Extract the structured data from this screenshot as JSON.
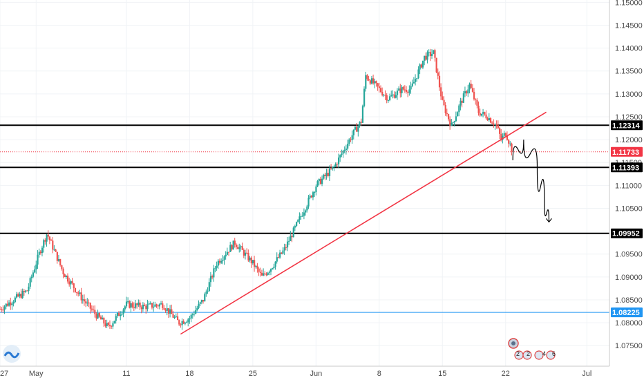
{
  "chart_data": {
    "type": "candlestick",
    "ylim": [
      1.0705,
      1.1505
    ],
    "x_range_days": [
      -4,
      63.5
    ],
    "y_ticks": [
      "1.07500",
      "1.08000",
      "1.08500",
      "1.09000",
      "1.09500",
      "1.10000",
      "1.10500",
      "1.11000",
      "1.11500",
      "1.12000",
      "1.12500",
      "1.13000",
      "1.13500",
      "1.14000",
      "1.14500",
      "1.15000"
    ],
    "x_ticks": [
      {
        "label": "27",
        "day": -4
      },
      {
        "label": "May",
        "day": 0
      },
      {
        "label": "11",
        "day": 10
      },
      {
        "label": "18",
        "day": 17
      },
      {
        "label": "25",
        "day": 24
      },
      {
        "label": "Jun",
        "day": 31
      },
      {
        "label": "8",
        "day": 38
      },
      {
        "label": "15",
        "day": 45
      },
      {
        "label": "22",
        "day": 52
      },
      {
        "label": "Jul",
        "day": 61
      }
    ],
    "anchors": [
      [
        -4,
        1.083
      ],
      [
        -1,
        1.087
      ],
      [
        0.4,
        1.0955
      ],
      [
        1.2,
        1.0995
      ],
      [
        3,
        1.091
      ],
      [
        5,
        1.0855
      ],
      [
        6.5,
        1.082
      ],
      [
        8,
        1.079
      ],
      [
        10,
        1.084
      ],
      [
        12,
        1.0835
      ],
      [
        14,
        1.084
      ],
      [
        15.8,
        1.08
      ],
      [
        17,
        1.081
      ],
      [
        18.5,
        1.085
      ],
      [
        20,
        1.093
      ],
      [
        22,
        1.0975
      ],
      [
        24,
        1.093
      ],
      [
        25,
        1.09
      ],
      [
        26,
        1.092
      ],
      [
        27.5,
        1.096
      ],
      [
        29,
        1.102
      ],
      [
        31,
        1.11
      ],
      [
        33,
        1.114
      ],
      [
        35,
        1.121
      ],
      [
        36,
        1.124
      ],
      [
        36.5,
        1.134
      ],
      [
        37.5,
        1.132
      ],
      [
        39,
        1.129
      ],
      [
        40.5,
        1.131
      ],
      [
        41.5,
        1.131
      ],
      [
        43,
        1.138
      ],
      [
        44,
        1.139
      ],
      [
        45,
        1.128
      ],
      [
        46,
        1.123
      ],
      [
        47,
        1.128
      ],
      [
        48,
        1.132
      ],
      [
        49,
        1.126
      ],
      [
        50,
        1.125
      ],
      [
        51,
        1.123
      ],
      [
        51.5,
        1.12
      ],
      [
        52,
        1.1215
      ],
      [
        52.8,
        1.1173
      ]
    ],
    "horizontal_levels": [
      {
        "value": 1.12314,
        "label": "1.12314",
        "color": "#000000"
      },
      {
        "value": 1.11393,
        "label": "1.11393",
        "color": "#000000"
      },
      {
        "value": 1.09952,
        "label": "1.09952",
        "color": "#000000"
      },
      {
        "value": 1.08225,
        "label": "1.08225",
        "color": "#2196f3"
      }
    ],
    "current_price": {
      "value": 1.11733,
      "label": "1.11733",
      "color": "#f23645"
    },
    "trendline": {
      "from": [
        16,
        1.0775
      ],
      "to": [
        56.5,
        1.126
      ],
      "color": "#f23645"
    },
    "projection": {
      "points": [
        [
          52.8,
          1.1155
        ],
        [
          54,
          1.12
        ],
        [
          55.5,
          1.114
        ],
        [
          56.3,
          1.106
        ],
        [
          56.8,
          1.102
        ]
      ],
      "color": "#000000"
    },
    "colors": {
      "up": "#26a69a",
      "down": "#ef5350"
    }
  }
}
